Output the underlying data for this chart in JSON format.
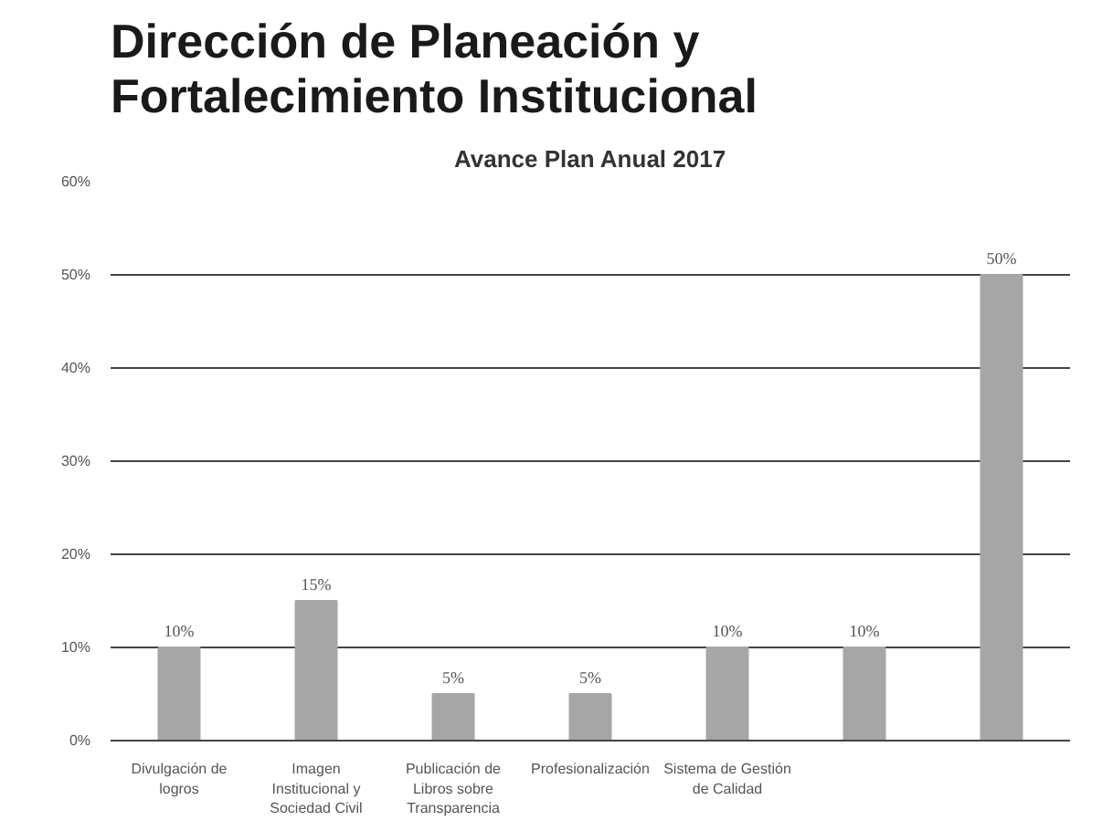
{
  "chart_data": {
    "type": "bar",
    "title": "Dirección de Planeación y\nFortalecimiento Institucional",
    "subtitle": "Avance Plan Anual 2017",
    "categories": [
      "Divulgación de logros",
      "Imagen Institucional y Sociedad Civil",
      "Publicación de Libros sobre Transparencia",
      "Profesionalización",
      "Sistema de Gestión de Calidad",
      null,
      null
    ],
    "values": [
      10,
      15,
      5,
      5,
      10,
      10,
      50
    ],
    "value_labels": [
      "10%",
      "15%",
      "5%",
      "5%",
      "10%",
      "10%",
      "50%"
    ],
    "color": "#a6a6a6",
    "ylim": [
      0,
      60
    ],
    "yticks": [
      {
        "value": 0,
        "label": "0%"
      },
      {
        "value": 10,
        "label": "10%"
      },
      {
        "value": 20,
        "label": "20%"
      },
      {
        "value": 30,
        "label": "30%"
      },
      {
        "value": 40,
        "label": "40%"
      },
      {
        "value": 50,
        "label": "50%"
      },
      {
        "value": 60,
        "label": "60%"
      }
    ],
    "grid": "y"
  }
}
